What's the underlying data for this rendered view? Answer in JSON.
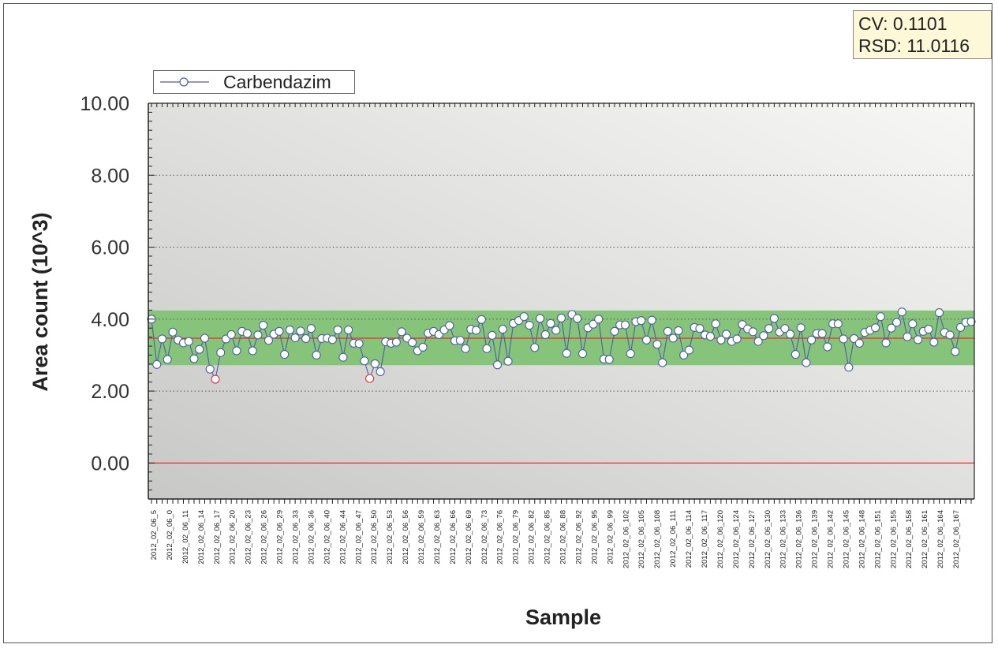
{
  "stats": {
    "cv": "CV: 0.1101",
    "rsd": "RSD: 11.0116"
  },
  "colors": {
    "series": "#4a5fa5",
    "band": "#86c47a",
    "mean_line": "#e03030",
    "outlier": "#e03030",
    "marker_fill": "#ffffff"
  },
  "chart_data": {
    "type": "line",
    "xlabel": "Sample",
    "ylabel": "Area count (10^3)",
    "ylim": [
      -1,
      10
    ],
    "yticks": [
      "0.00",
      "2.00",
      "4.00",
      "6.00",
      "8.00",
      "10.00"
    ],
    "ytick_values": [
      0,
      2,
      4,
      6,
      8,
      10
    ],
    "grid": "horizontal dotted",
    "legend": "top-left",
    "band": [
      2.72,
      4.24
    ],
    "mean": 3.47,
    "zero_line": 0,
    "x_tick_labels": [
      "2012_02_06_5",
      "2012_02_06_0",
      "2012_02_06_11",
      "2012_02_06_14",
      "2012_02_06_17",
      "2012_02_06_20",
      "2012_02_06_23",
      "2012_02_06_26",
      "2012_02_06_29",
      "2012_02_06_33",
      "2012_02_06_36",
      "2012_02_06_40",
      "2012_02_06_44",
      "2012_02_06_47",
      "2012_02_06_50",
      "2012_02_06_53",
      "2012_02_06_56",
      "2012_02_06_59",
      "2012_02_06_63",
      "2012_02_06_66",
      "2012_02_06_69",
      "2012_02_06_73",
      "2012_02_06_76",
      "2012_02_06_79",
      "2012_02_06_82",
      "2012_02_06_85",
      "2012_02_06_88",
      "2012_02_06_92",
      "2012_02_06_95",
      "2012_02_06_99",
      "2012_02_06_102",
      "2012_02_06_105",
      "2012_02_06_108",
      "2012_02_06_111",
      "2012_02_06_114",
      "2012_02_06_117",
      "2012_02_06_120",
      "2012_02_06_124",
      "2012_02_06_127",
      "2012_02_06_130",
      "2012_02_06_133",
      "2012_02_06_136",
      "2012_02_06_139",
      "2012_02_06_142",
      "2012_02_06_145",
      "2012_02_06_148",
      "2012_02_06_151",
      "2012_02_06_155",
      "2012_02_06_158",
      "2012_02_06_161",
      "2012_02_06_164",
      "2012_02_06_167"
    ],
    "series": [
      {
        "name": "Carbendazim",
        "values": [
          4.0,
          2.74,
          3.45,
          2.88,
          3.64,
          3.42,
          3.34,
          3.38,
          2.9,
          3.16,
          3.47,
          2.61,
          2.33,
          3.07,
          3.45,
          3.57,
          3.12,
          3.66,
          3.6,
          3.12,
          3.56,
          3.83,
          3.41,
          3.58,
          3.66,
          3.02,
          3.7,
          3.48,
          3.67,
          3.46,
          3.74,
          3.0,
          3.46,
          3.47,
          3.43,
          3.7,
          2.94,
          3.7,
          3.33,
          3.32,
          2.84,
          2.35,
          2.76,
          2.54,
          3.37,
          3.33,
          3.36,
          3.65,
          3.47,
          3.35,
          3.12,
          3.22,
          3.61,
          3.66,
          3.57,
          3.7,
          3.82,
          3.4,
          3.41,
          3.18,
          3.72,
          3.69,
          3.99,
          3.18,
          3.55,
          2.73,
          3.72,
          2.83,
          3.88,
          3.96,
          4.07,
          3.83,
          3.21,
          4.02,
          3.57,
          3.88,
          3.69,
          4.03,
          3.05,
          4.13,
          4.02,
          3.04,
          3.76,
          3.86,
          4.0,
          2.89,
          2.88,
          3.66,
          3.84,
          3.84,
          3.04,
          3.93,
          3.96,
          3.42,
          3.97,
          3.3,
          2.79,
          3.66,
          3.47,
          3.68,
          3.0,
          3.14,
          3.77,
          3.74,
          3.56,
          3.52,
          3.87,
          3.42,
          3.58,
          3.38,
          3.45,
          3.85,
          3.73,
          3.65,
          3.38,
          3.54,
          3.74,
          4.02,
          3.64,
          3.74,
          3.58,
          3.02,
          3.76,
          2.79,
          3.42,
          3.6,
          3.6,
          3.23,
          3.87,
          3.87,
          3.45,
          2.66,
          3.46,
          3.33,
          3.63,
          3.69,
          3.76,
          4.07,
          3.34,
          3.75,
          3.91,
          4.2,
          3.51,
          3.87,
          3.43,
          3.66,
          3.72,
          3.36,
          4.18,
          3.63,
          3.56,
          3.1,
          3.77,
          3.91,
          3.93
        ]
      }
    ],
    "outlier_indices": [
      12,
      41
    ]
  }
}
